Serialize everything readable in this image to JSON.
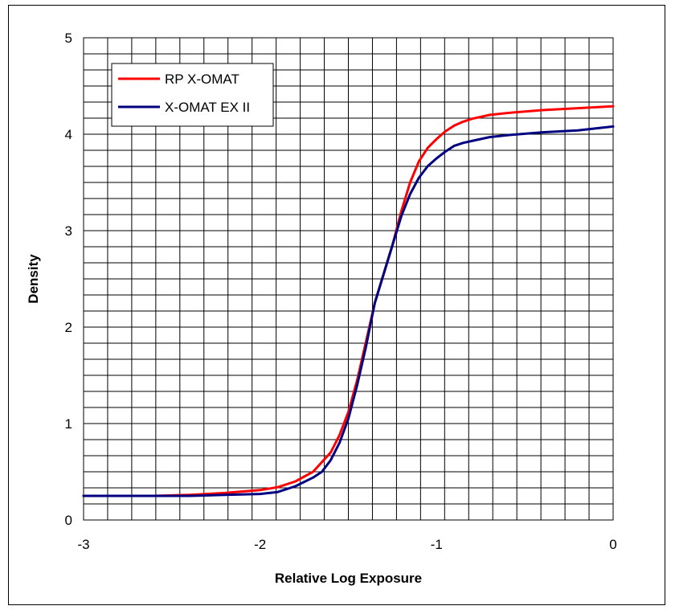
{
  "chart_data": {
    "type": "line",
    "title": "",
    "xlabel": "Relative Log Exposure",
    "ylabel": "Density",
    "xlim": [
      -3,
      0
    ],
    "ylim": [
      0,
      5
    ],
    "x_ticks": [
      -3,
      -2,
      -1,
      0
    ],
    "y_ticks": [
      0,
      1,
      2,
      3,
      4,
      5
    ],
    "grid": true,
    "legend_position": "top-left",
    "series": [
      {
        "name": "RP X-OMAT",
        "color": "#ff0000",
        "x": [
          -3,
          -2.6,
          -2.4,
          -2.2,
          -2.0,
          -1.9,
          -1.8,
          -1.7,
          -1.6,
          -1.55,
          -1.5,
          -1.45,
          -1.4,
          -1.35,
          -1.3,
          -1.25,
          -1.2,
          -1.15,
          -1.1,
          -1.05,
          -1.0,
          -0.95,
          -0.9,
          -0.85,
          -0.8,
          -0.7,
          -0.6,
          -0.4,
          -0.2,
          0
        ],
        "y": [
          0.25,
          0.25,
          0.26,
          0.28,
          0.31,
          0.34,
          0.4,
          0.5,
          0.7,
          0.88,
          1.12,
          1.45,
          1.85,
          2.25,
          2.55,
          2.85,
          3.2,
          3.5,
          3.72,
          3.86,
          3.95,
          4.03,
          4.09,
          4.13,
          4.16,
          4.2,
          4.22,
          4.25,
          4.27,
          4.29
        ]
      },
      {
        "name": "X-OMAT EX II",
        "color": "#000080",
        "x": [
          -3,
          -2.6,
          -2.4,
          -2.2,
          -2.0,
          -1.9,
          -1.8,
          -1.7,
          -1.65,
          -1.6,
          -1.55,
          -1.5,
          -1.45,
          -1.4,
          -1.35,
          -1.3,
          -1.25,
          -1.2,
          -1.15,
          -1.1,
          -1.05,
          -1.0,
          -0.95,
          -0.9,
          -0.85,
          -0.8,
          -0.7,
          -0.6,
          -0.4,
          -0.2,
          0
        ],
        "y": [
          0.25,
          0.25,
          0.25,
          0.26,
          0.27,
          0.29,
          0.35,
          0.44,
          0.5,
          0.62,
          0.8,
          1.05,
          1.4,
          1.8,
          2.25,
          2.55,
          2.85,
          3.15,
          3.38,
          3.55,
          3.67,
          3.75,
          3.82,
          3.88,
          3.91,
          3.93,
          3.97,
          3.99,
          4.02,
          4.04,
          4.08
        ]
      }
    ]
  }
}
